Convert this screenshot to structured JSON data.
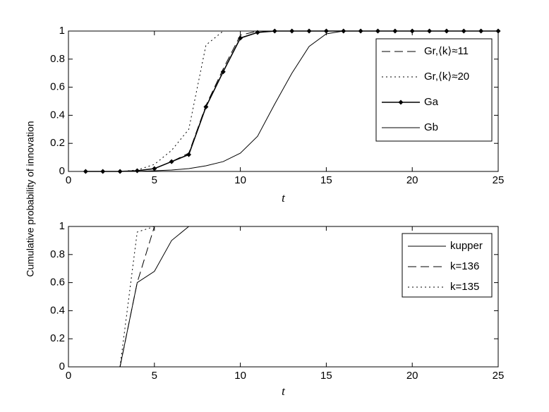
{
  "chart_data": [
    {
      "type": "line",
      "xlabel": "t",
      "ylabel": "Cumulative probability of innovation",
      "x": [
        1,
        2,
        3,
        4,
        5,
        6,
        7,
        8,
        9,
        10,
        11,
        12,
        13,
        14,
        15,
        16,
        17,
        18,
        19,
        20,
        21,
        22,
        23,
        24,
        25
      ],
      "xlim": [
        0,
        25
      ],
      "ylim": [
        0,
        1
      ],
      "xticks": [
        0,
        5,
        10,
        15,
        20,
        25
      ],
      "yticks": [
        0,
        0.2,
        0.4,
        0.6,
        0.8,
        1
      ],
      "series": [
        {
          "name": "Gr,⟨k⟩≈11",
          "color": "#000000",
          "linestyle": "dashed",
          "values": [
            0,
            0,
            0,
            0.005,
            0.02,
            0.07,
            0.13,
            0.47,
            0.73,
            0.97,
            1,
            1,
            1,
            1,
            1,
            1,
            1,
            1,
            1,
            1,
            1,
            1,
            1,
            1,
            1
          ]
        },
        {
          "name": "Gr,⟨k⟩≈20",
          "color": "#000000",
          "linestyle": "dotted",
          "values": [
            0,
            0,
            0,
            0.01,
            0.05,
            0.15,
            0.3,
            0.9,
            1,
            1,
            1,
            1,
            1,
            1,
            1,
            1,
            1,
            1,
            1,
            1,
            1,
            1,
            1,
            1,
            1
          ]
        },
        {
          "name": "Ga",
          "color": "#000000",
          "linestyle": "solid",
          "marker": "diamond",
          "values": [
            0,
            0,
            0,
            0.005,
            0.02,
            0.07,
            0.12,
            0.46,
            0.71,
            0.95,
            0.99,
            1,
            1,
            1,
            1,
            1,
            1,
            1,
            1,
            1,
            1,
            1,
            1,
            1,
            1
          ]
        },
        {
          "name": "Gb",
          "color": "#000000",
          "linestyle": "solid",
          "values": [
            0,
            0,
            0,
            0,
            0.005,
            0.01,
            0.02,
            0.04,
            0.07,
            0.13,
            0.25,
            0.48,
            0.7,
            0.89,
            0.98,
            1,
            1,
            1,
            1,
            1,
            1,
            1,
            1,
            1,
            1
          ]
        }
      ]
    },
    {
      "type": "line",
      "xlabel": "t",
      "x": [
        3,
        4,
        5,
        6,
        7
      ],
      "xlim": [
        0,
        25
      ],
      "ylim": [
        0,
        1
      ],
      "xticks": [
        0,
        5,
        10,
        15,
        20,
        25
      ],
      "yticks": [
        0,
        0.2,
        0.4,
        0.6,
        0.8,
        1
      ],
      "series": [
        {
          "name": "kupper",
          "color": "#000000",
          "linestyle": "solid",
          "values": [
            0,
            0.6,
            0.68,
            0.9,
            1
          ]
        },
        {
          "name": "k=136",
          "color": "#000000",
          "linestyle": "dashed",
          "values": [
            0,
            0.6,
            1,
            1,
            1
          ]
        },
        {
          "name": "k=135",
          "color": "#000000",
          "linestyle": "dotted",
          "values": [
            0,
            0.96,
            1,
            1,
            1
          ]
        }
      ]
    }
  ]
}
